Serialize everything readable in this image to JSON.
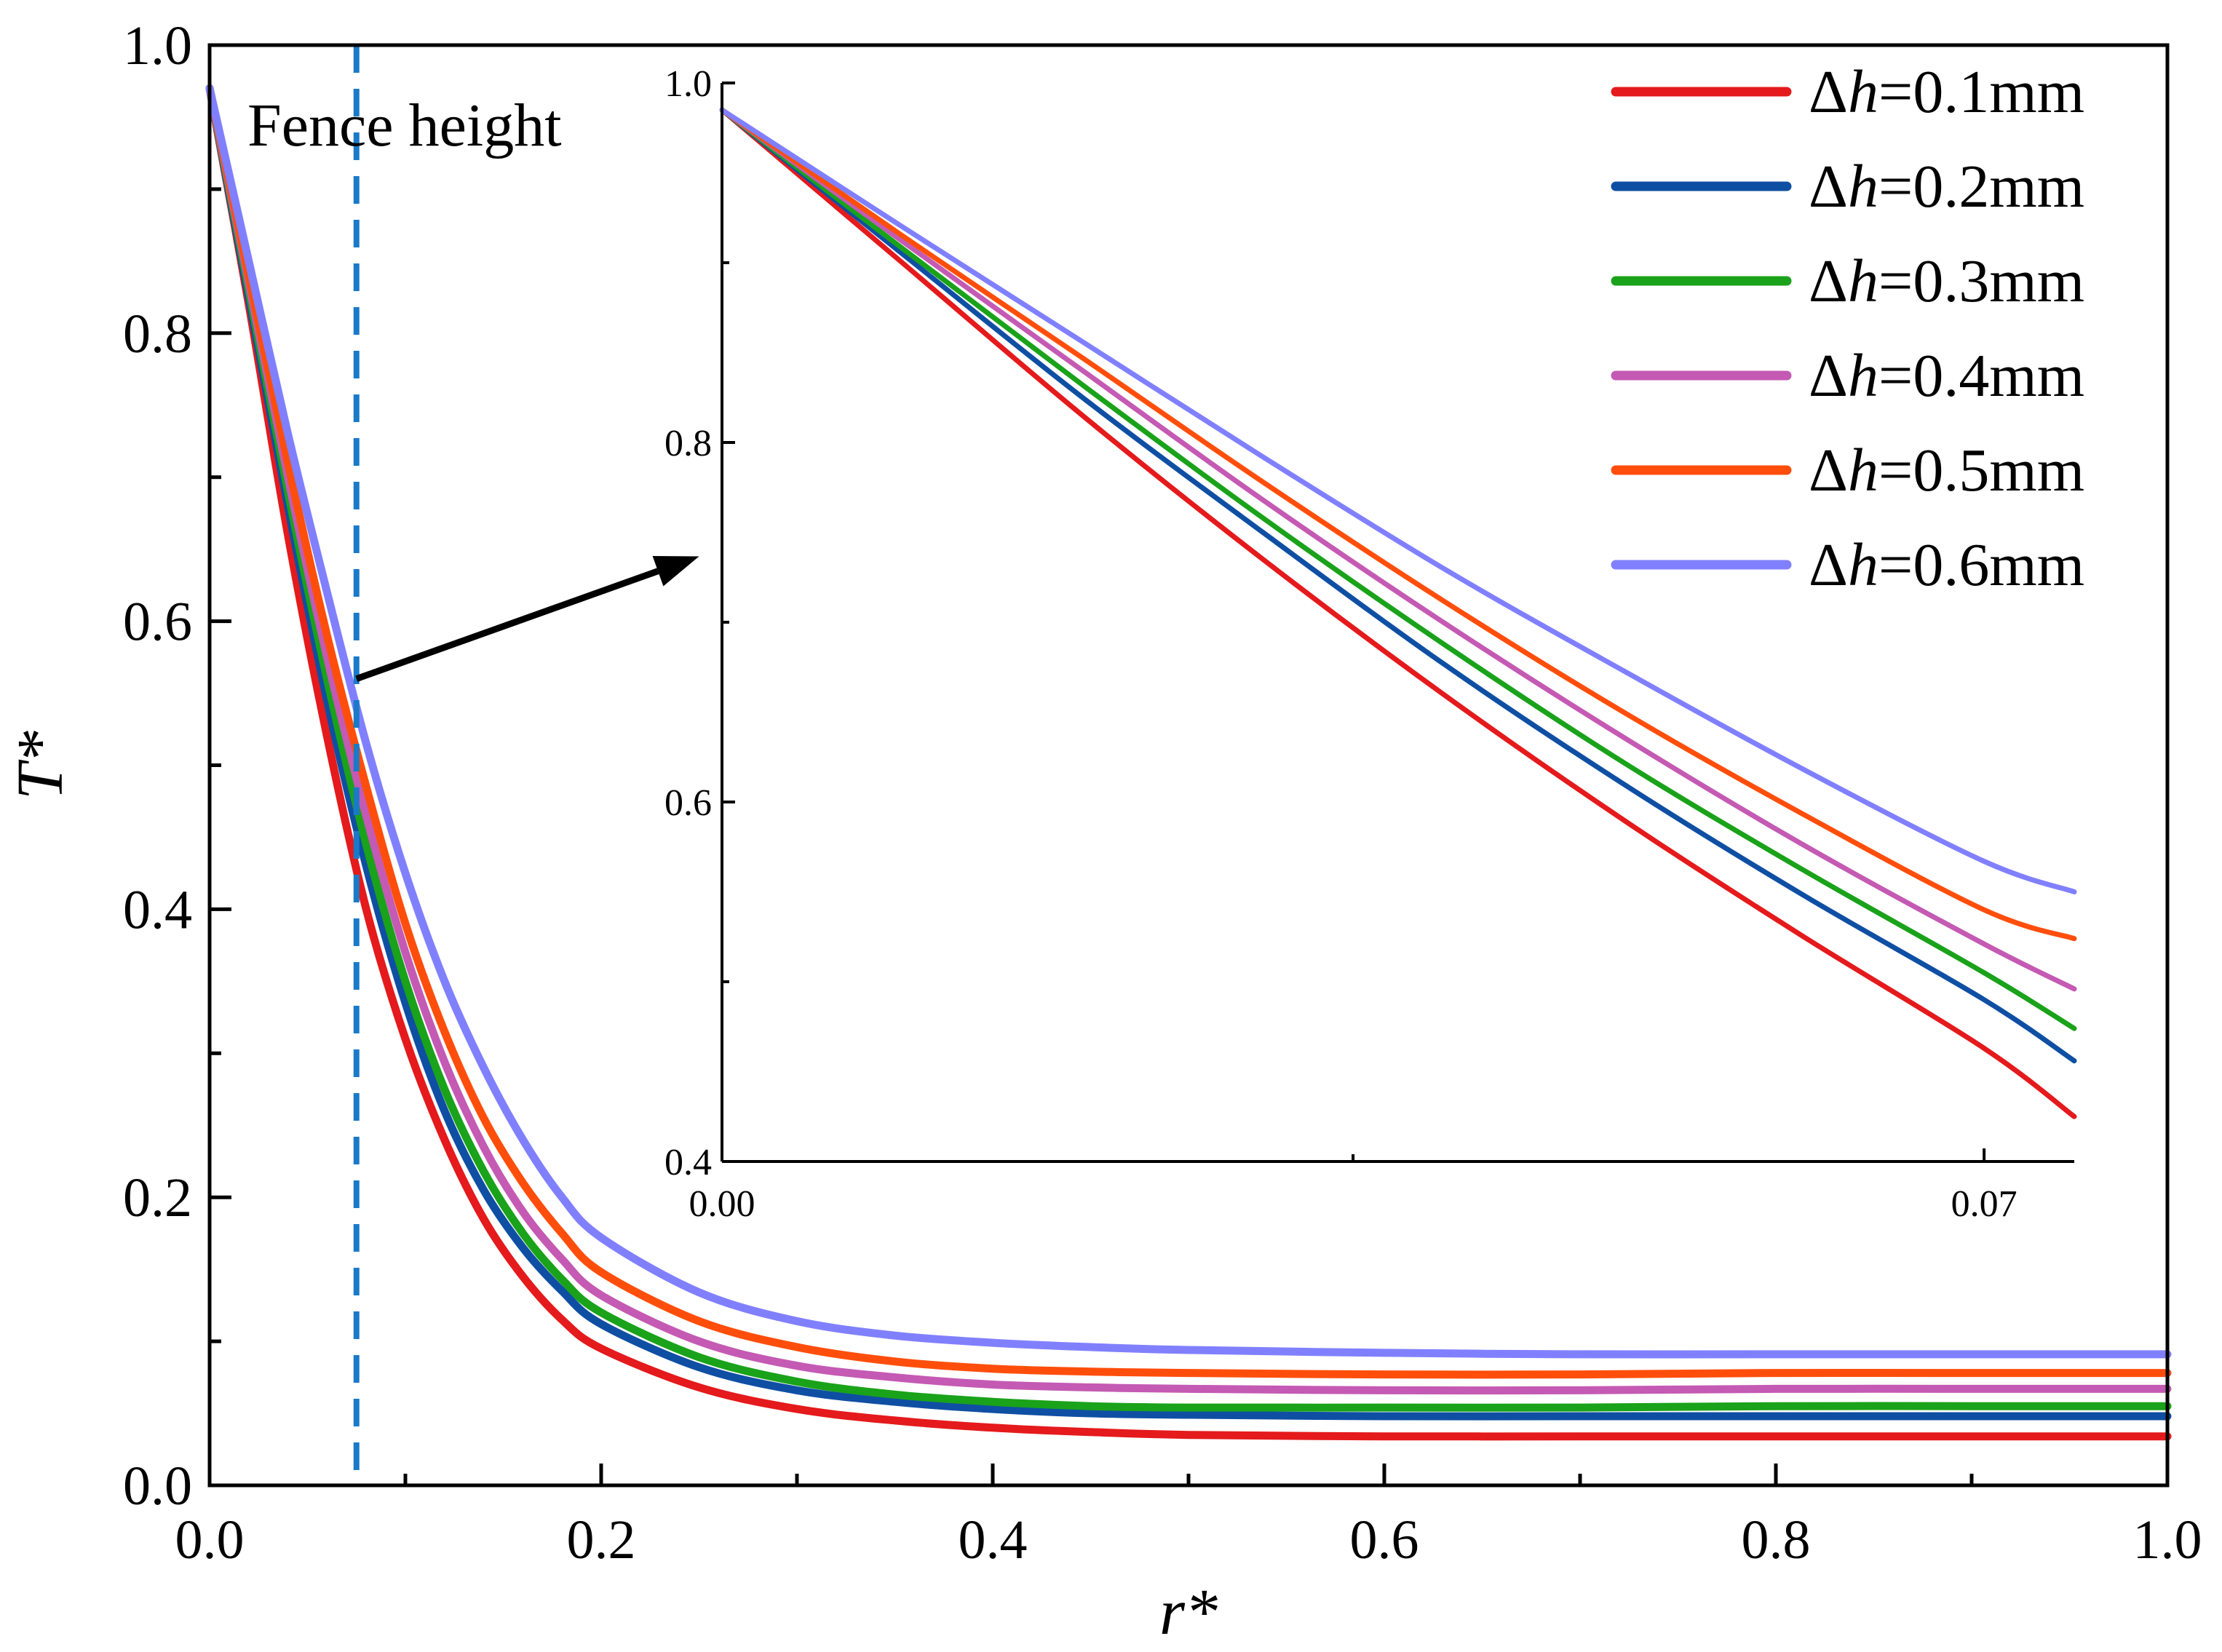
{
  "chart_data": [
    {
      "id": "main",
      "type": "line",
      "xlabel": "r*",
      "ylabel": "T*",
      "xlim": [
        0.0,
        1.0
      ],
      "ylim": [
        0.0,
        1.0
      ],
      "x_major_ticks": [
        0.0,
        0.2,
        0.4,
        0.6,
        0.8,
        1.0
      ],
      "x_tick_labels": [
        "0.0",
        "0.2",
        "0.4",
        "0.6",
        "0.8",
        "1.0"
      ],
      "y_major_ticks": [
        0.0,
        0.2,
        0.4,
        0.6,
        0.8,
        1.0
      ],
      "y_tick_labels": [
        "0.0",
        "0.2",
        "0.4",
        "0.6",
        "0.8",
        "1.0"
      ],
      "x_minor_ticks": [
        0.1,
        0.3,
        0.5,
        0.7,
        0.9
      ],
      "y_minor_ticks": [
        0.1,
        0.3,
        0.5,
        0.7,
        0.9
      ],
      "legend": "top-right",
      "grid": false,
      "x": [
        0.0,
        0.02,
        0.04,
        0.06,
        0.08,
        0.1,
        0.12,
        0.14,
        0.16,
        0.18,
        0.2,
        0.25,
        0.3,
        0.35,
        0.4,
        0.45,
        0.5,
        0.6,
        0.7,
        0.8,
        0.9,
        1.0
      ],
      "series": [
        {
          "name": "Δh=0.1mm",
          "label_prefix": "Δ",
          "label_italic": "h",
          "label_suffix": "=0.1mm",
          "color": "#e41a1c",
          "values": [
            0.97,
            0.82,
            0.66,
            0.52,
            0.4,
            0.31,
            0.24,
            0.185,
            0.145,
            0.115,
            0.095,
            0.068,
            0.053,
            0.045,
            0.04,
            0.037,
            0.035,
            0.034,
            0.034,
            0.034,
            0.034,
            0.034
          ]
        },
        {
          "name": "Δh=0.2mm",
          "label_prefix": "Δ",
          "label_italic": "h",
          "label_suffix": "=0.2mm",
          "color": "#0f4fa3",
          "values": [
            0.97,
            0.825,
            0.68,
            0.545,
            0.43,
            0.335,
            0.26,
            0.205,
            0.165,
            0.135,
            0.112,
            0.082,
            0.066,
            0.058,
            0.053,
            0.05,
            0.049,
            0.048,
            0.048,
            0.048,
            0.048,
            0.048
          ]
        },
        {
          "name": "Δh=0.3mm",
          "label_prefix": "Δ",
          "label_italic": "h",
          "label_suffix": "=0.3mm",
          "color": "#1aa21a",
          "values": [
            0.97,
            0.83,
            0.69,
            0.56,
            0.445,
            0.35,
            0.275,
            0.218,
            0.175,
            0.143,
            0.12,
            0.089,
            0.072,
            0.063,
            0.058,
            0.055,
            0.054,
            0.054,
            0.054,
            0.055,
            0.055,
            0.055
          ]
        },
        {
          "name": "Δh=0.4mm",
          "label_prefix": "Δ",
          "label_italic": "h",
          "label_suffix": "=0.4mm",
          "color": "#c45ab3",
          "values": [
            0.97,
            0.835,
            0.7,
            0.575,
            0.465,
            0.37,
            0.294,
            0.235,
            0.19,
            0.157,
            0.132,
            0.1,
            0.083,
            0.075,
            0.07,
            0.068,
            0.067,
            0.066,
            0.066,
            0.067,
            0.067,
            0.067
          ]
        },
        {
          "name": "Δh=0.5mm",
          "label_prefix": "Δ",
          "label_italic": "h",
          "label_suffix": "=0.5mm",
          "color": "#ff4e0b",
          "values": [
            0.97,
            0.84,
            0.71,
            0.59,
            0.485,
            0.39,
            0.315,
            0.255,
            0.21,
            0.175,
            0.148,
            0.114,
            0.096,
            0.086,
            0.081,
            0.079,
            0.078,
            0.077,
            0.077,
            0.078,
            0.078,
            0.078
          ]
        },
        {
          "name": "Δh=0.6mm",
          "label_prefix": "Δ",
          "label_italic": "h",
          "label_suffix": "=0.6mm",
          "color": "#8080ff",
          "values": [
            0.97,
            0.85,
            0.73,
            0.62,
            0.515,
            0.425,
            0.35,
            0.29,
            0.24,
            0.2,
            0.172,
            0.134,
            0.114,
            0.104,
            0.099,
            0.096,
            0.094,
            0.092,
            0.091,
            0.091,
            0.091,
            0.091
          ]
        }
      ],
      "annotations": [
        {
          "type": "vline",
          "x": 0.075,
          "style": "dashed",
          "color": "#1a7ac8",
          "text": "Fence height"
        },
        {
          "type": "arrow",
          "from": {
            "x": 0.075,
            "y": 0.56
          },
          "to": {
            "x": 0.25,
            "y": 0.645
          },
          "color": "#000000"
        }
      ]
    },
    {
      "id": "inset",
      "type": "line",
      "xlim": [
        0.0,
        0.075
      ],
      "ylim": [
        0.4,
        1.0
      ],
      "x_major_ticks": [
        0.0,
        0.07
      ],
      "x_tick_labels": [
        "0.00",
        "0.07"
      ],
      "x_minor_ticks": [
        0.035
      ],
      "y_major_ticks": [
        0.4,
        0.6,
        0.8,
        1.0
      ],
      "y_tick_labels": [
        "0.4",
        "0.6",
        "0.8",
        "1.0"
      ],
      "y_minor_ticks": [
        0.5,
        0.7,
        0.9
      ],
      "x": [
        0.0,
        0.01,
        0.02,
        0.03,
        0.04,
        0.05,
        0.06,
        0.07,
        0.075
      ],
      "series": [
        {
          "name": "Δh=0.1mm",
          "color": "#e41a1c",
          "values": [
            0.985,
            0.9,
            0.815,
            0.735,
            0.66,
            0.59,
            0.525,
            0.463,
            0.425
          ]
        },
        {
          "name": "Δh=0.2mm",
          "color": "#0f4fa3",
          "values": [
            0.985,
            0.905,
            0.825,
            0.75,
            0.677,
            0.61,
            0.548,
            0.49,
            0.456
          ]
        },
        {
          "name": "Δh=0.3mm",
          "color": "#1aa21a",
          "values": [
            0.985,
            0.908,
            0.832,
            0.758,
            0.688,
            0.622,
            0.562,
            0.505,
            0.474
          ]
        },
        {
          "name": "Δh=0.4mm",
          "color": "#c45ab3",
          "values": [
            0.985,
            0.912,
            0.84,
            0.768,
            0.7,
            0.636,
            0.576,
            0.521,
            0.496
          ]
        },
        {
          "name": "Δh=0.5mm",
          "color": "#ff4e0b",
          "values": [
            0.985,
            0.915,
            0.847,
            0.778,
            0.712,
            0.65,
            0.593,
            0.54,
            0.524
          ]
        },
        {
          "name": "Δh=0.6mm",
          "color": "#8080ff",
          "values": [
            0.985,
            0.92,
            0.856,
            0.792,
            0.73,
            0.673,
            0.618,
            0.567,
            0.55
          ]
        }
      ]
    }
  ]
}
